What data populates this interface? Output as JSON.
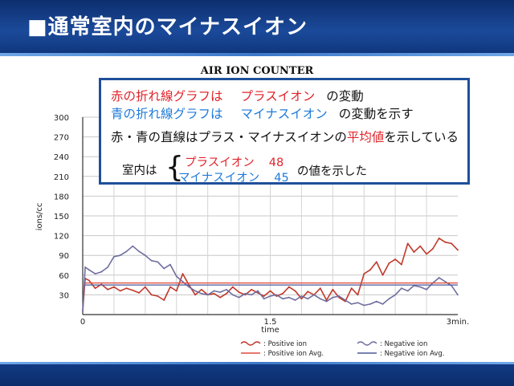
{
  "slide": {
    "title": "■通常室内のマイナスイオン"
  },
  "annotation": {
    "line1_red": "赤の折れ線グラフは",
    "line1_red2": "プラスイオン",
    "line1_tail": "の変動",
    "line2_blue": "青の折れ線グラフは",
    "line2_blue2": "マイナスイオン",
    "line2_tail": "の変動を示す",
    "line3_a": "赤・青の直線はプラス・マイナスイオンの",
    "line3_red": "平均値",
    "line3_b": "を示している",
    "inside_label": "室内は",
    "positive_label": "プラスイオン",
    "positive_value": "48",
    "negative_label": "マイナスイオン",
    "negative_value": "45",
    "tail": "の値を示した"
  },
  "chart_data": {
    "type": "line",
    "title": "AIR ION COUNTER",
    "xlabel": "time",
    "ylabel": "ions/cc",
    "xlim": [
      0,
      3
    ],
    "ylim": [
      0,
      300
    ],
    "x_ticks": [
      "0",
      "1.5",
      "3min."
    ],
    "y_ticks": [
      "30",
      "60",
      "90",
      "120",
      "150",
      "180",
      "210",
      "240",
      "270",
      "300"
    ],
    "grid": true,
    "legend_position": "bottom",
    "legend": [
      {
        "label": ": Positive ion",
        "color": "#c0392b",
        "style": "wavy"
      },
      {
        "label": ": Negative ion",
        "color": "#6e6ea0",
        "style": "wavy"
      },
      {
        "label": ": Positive ion Avg.",
        "color": "#e04a3a",
        "style": "straight"
      },
      {
        "label": ": Negative ion Avg.",
        "color": "#4a5a9a",
        "style": "straight"
      }
    ],
    "series": [
      {
        "name": "Positive ion",
        "color": "#c0392b",
        "x": [
          0,
          0.02,
          0.05,
          0.1,
          0.15,
          0.2,
          0.25,
          0.3,
          0.35,
          0.4,
          0.45,
          0.5,
          0.55,
          0.6,
          0.65,
          0.7,
          0.75,
          0.8,
          0.85,
          0.9,
          0.95,
          1.0,
          1.05,
          1.1,
          1.15,
          1.2,
          1.25,
          1.3,
          1.35,
          1.4,
          1.45,
          1.5,
          1.55,
          1.6,
          1.65,
          1.7,
          1.75,
          1.8,
          1.85,
          1.9,
          1.95,
          2.0,
          2.05,
          2.1,
          2.15,
          2.2,
          2.25,
          2.3,
          2.35,
          2.4,
          2.45,
          2.5,
          2.55,
          2.6,
          2.65,
          2.7,
          2.75,
          2.8,
          2.85,
          2.9,
          2.95,
          3.0
        ],
        "values": [
          5,
          55,
          52,
          40,
          46,
          38,
          42,
          36,
          40,
          37,
          33,
          42,
          30,
          28,
          22,
          42,
          36,
          62,
          45,
          30,
          38,
          30,
          32,
          26,
          32,
          42,
          34,
          30,
          38,
          33,
          28,
          36,
          28,
          32,
          42,
          36,
          24,
          35,
          30,
          40,
          22,
          38,
          26,
          20,
          40,
          30,
          62,
          68,
          80,
          60,
          78,
          84,
          76,
          108,
          95,
          104,
          92,
          100,
          116,
          110,
          108,
          98
        ]
      },
      {
        "name": "Negative ion",
        "color": "#6e6ea0",
        "x": [
          0,
          0.02,
          0.05,
          0.1,
          0.15,
          0.2,
          0.25,
          0.3,
          0.35,
          0.4,
          0.45,
          0.5,
          0.55,
          0.6,
          0.65,
          0.7,
          0.75,
          0.8,
          0.85,
          0.9,
          0.95,
          1.0,
          1.05,
          1.1,
          1.15,
          1.2,
          1.25,
          1.3,
          1.35,
          1.4,
          1.45,
          1.5,
          1.55,
          1.6,
          1.65,
          1.7,
          1.75,
          1.8,
          1.85,
          1.9,
          1.95,
          2.0,
          2.05,
          2.1,
          2.15,
          2.2,
          2.25,
          2.3,
          2.35,
          2.4,
          2.45,
          2.5,
          2.55,
          2.6,
          2.65,
          2.7,
          2.75,
          2.8,
          2.85,
          2.9,
          2.95,
          3.0
        ],
        "values": [
          5,
          72,
          68,
          62,
          65,
          72,
          88,
          90,
          96,
          104,
          96,
          90,
          82,
          80,
          70,
          76,
          58,
          50,
          42,
          36,
          32,
          30,
          36,
          34,
          38,
          30,
          26,
          32,
          30,
          36,
          24,
          28,
          30,
          24,
          26,
          22,
          28,
          24,
          30,
          24,
          20,
          26,
          28,
          22,
          16,
          18,
          14,
          16,
          20,
          16,
          24,
          30,
          40,
          36,
          44,
          42,
          38,
          48,
          56,
          50,
          44,
          30
        ]
      },
      {
        "name": "Positive ion Avg.",
        "color": "#e04a3a",
        "x": [
          0.02,
          3.0
        ],
        "values": [
          48,
          48
        ]
      },
      {
        "name": "Negative ion Avg.",
        "color": "#4a5a9a",
        "x": [
          0.02,
          3.0
        ],
        "values": [
          45,
          45
        ]
      }
    ]
  }
}
